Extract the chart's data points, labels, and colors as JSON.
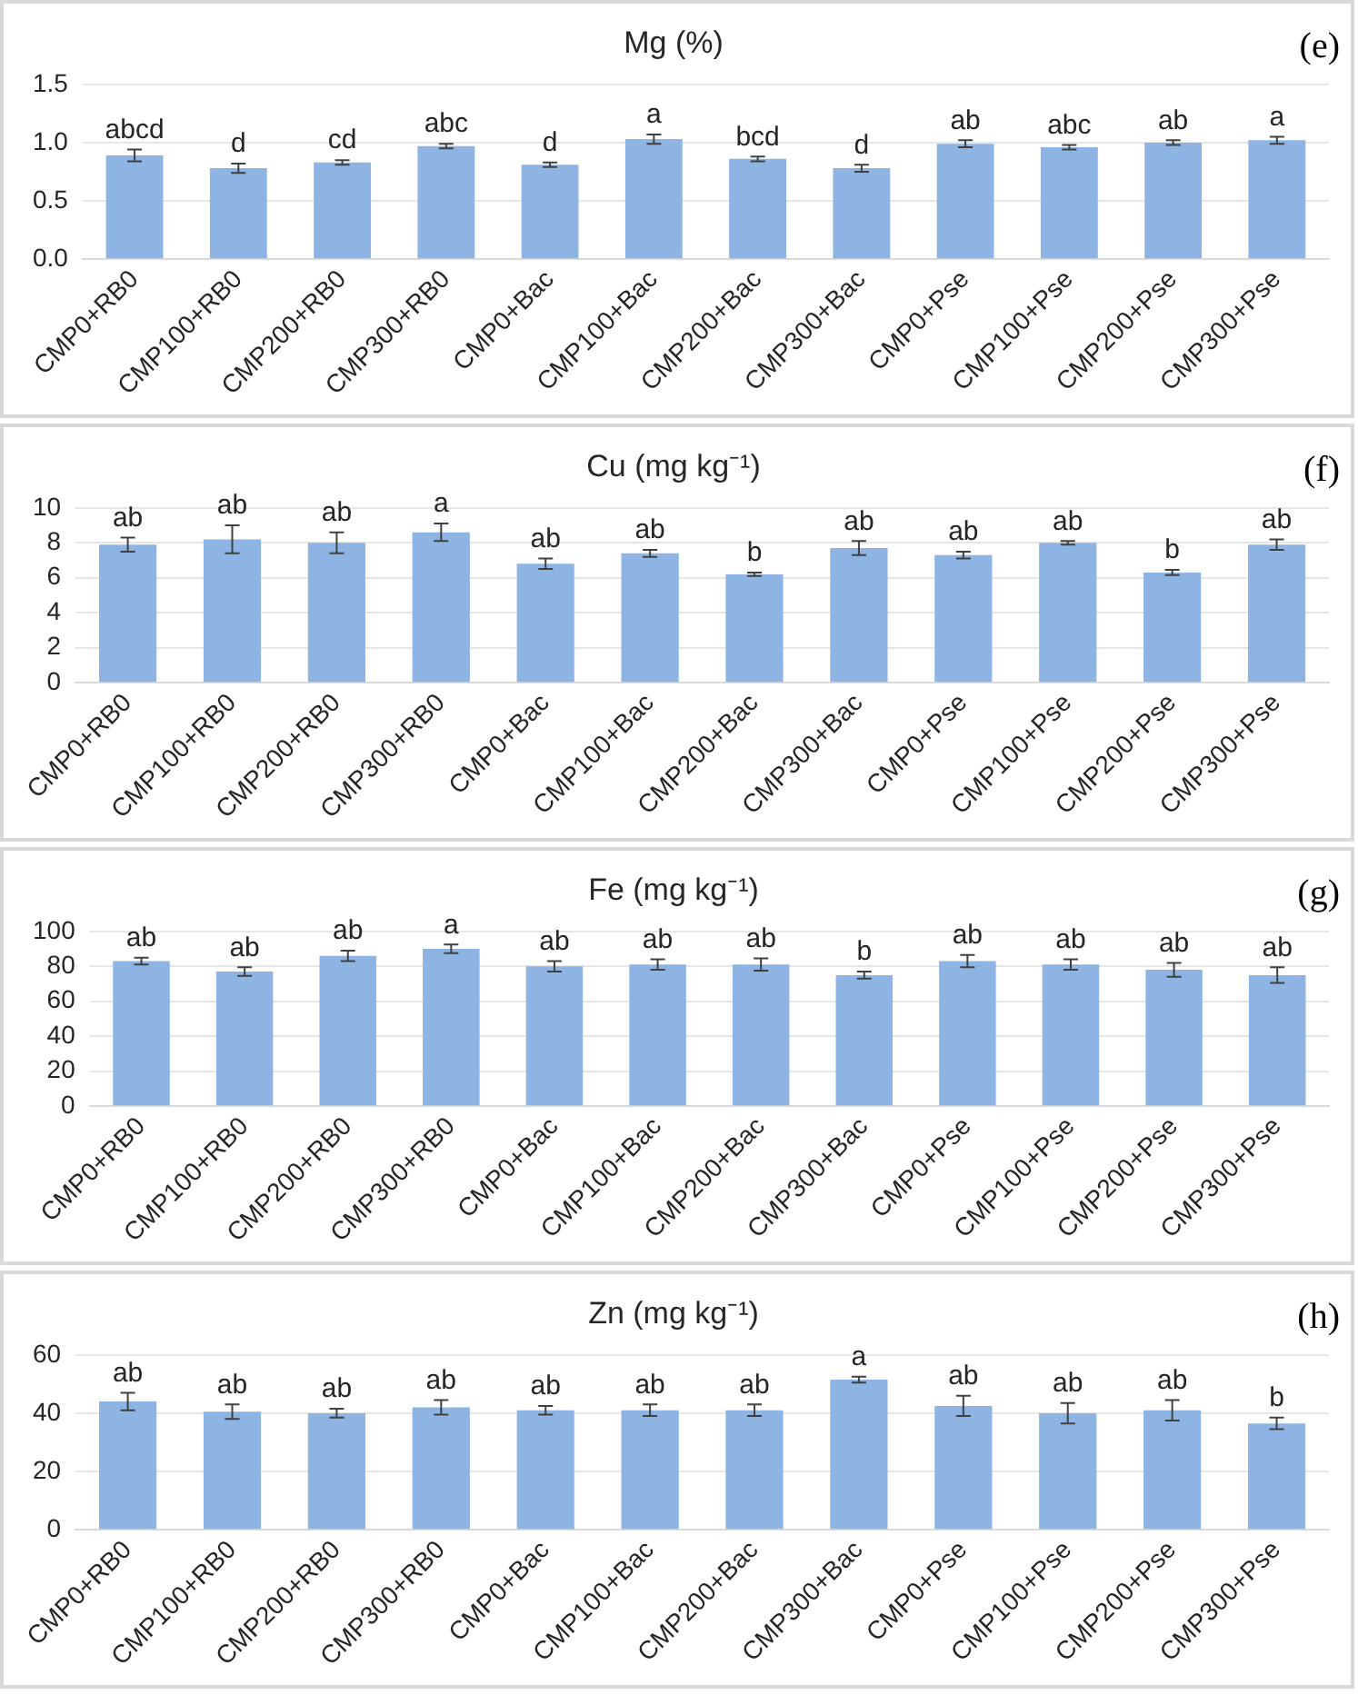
{
  "chart_data": [
    {
      "type": "bar",
      "title": "Mg (%)",
      "categories": [
        "CMP0+RB0",
        "CMP100+RB0",
        "CMP200+RB0",
        "CMP300+RB0",
        "CMP0+Bac",
        "CMP100+Bac",
        "CMP200+Bac",
        "CMP300+Bac",
        "CMP0+Pse",
        "CMP100+Pse",
        "CMP200+Pse",
        "CMP300+Pse"
      ],
      "values": [
        0.89,
        0.78,
        0.83,
        0.97,
        0.81,
        1.03,
        0.86,
        0.78,
        0.99,
        0.96,
        1.0,
        1.02
      ],
      "errors": [
        0.05,
        0.04,
        0.02,
        0.02,
        0.02,
        0.04,
        0.02,
        0.03,
        0.03,
        0.02,
        0.02,
        0.03
      ],
      "color": "#8db4e2",
      "ylim": [
        0,
        1.5
      ],
      "yticks": [
        {
          "value": 0,
          "label": "0.0"
        },
        {
          "value": 0.5,
          "label": "0.5"
        },
        {
          "value": 1,
          "label": "1.0"
        },
        {
          "value": 1.5,
          "label": "1.5"
        }
      ],
      "grid": "y",
      "legend": false,
      "annotations": [
        "(e)",
        {
          "text": "abcd",
          "x": "CMP0+RB0",
          "y": 0.94
        },
        {
          "text": "d",
          "x": "CMP100+RB0",
          "y": 0.82
        },
        {
          "text": "cd",
          "x": "CMP200+RB0",
          "y": 0.85
        },
        {
          "text": "abc",
          "x": "CMP300+RB0",
          "y": 0.99
        },
        {
          "text": "d",
          "x": "CMP0+Bac",
          "y": 0.83
        },
        {
          "text": "a",
          "x": "CMP100+Bac",
          "y": 1.07
        },
        {
          "text": "bcd",
          "x": "CMP200+Bac",
          "y": 0.88
        },
        {
          "text": "d",
          "x": "CMP300+Bac",
          "y": 0.81
        },
        {
          "text": "ab",
          "x": "CMP0+Pse",
          "y": 1.02
        },
        {
          "text": "abc",
          "x": "CMP100+Pse",
          "y": 0.98
        },
        {
          "text": "ab",
          "x": "CMP200+Pse",
          "y": 1.02
        },
        {
          "text": "a",
          "x": "CMP300+Pse",
          "y": 1.05
        }
      ]
    },
    {
      "type": "bar",
      "title": "Cu (mg kg⁻¹)",
      "categories": [
        "CMP0+RB0",
        "CMP100+RB0",
        "CMP200+RB0",
        "CMP300+RB0",
        "CMP0+Bac",
        "CMP100+Bac",
        "CMP200+Bac",
        "CMP300+Bac",
        "CMP0+Pse",
        "CMP100+Pse",
        "CMP200+Pse",
        "CMP300+Pse"
      ],
      "values": [
        7.9,
        8.2,
        8.0,
        8.6,
        6.8,
        7.4,
        6.2,
        7.7,
        7.3,
        8.0,
        6.3,
        7.9
      ],
      "errors": [
        0.4,
        0.8,
        0.6,
        0.5,
        0.3,
        0.2,
        0.1,
        0.4,
        0.2,
        0.1,
        0.15,
        0.3
      ],
      "color": "#8db4e2",
      "ylim": [
        0,
        10
      ],
      "yticks": [
        0,
        2,
        4,
        6,
        8,
        10
      ],
      "grid": "y",
      "legend": false,
      "annotations": [
        "(f)",
        {
          "text": "ab",
          "x": "CMP0+RB0",
          "y": 8.3
        },
        {
          "text": "ab",
          "x": "CMP100+RB0",
          "y": 9.0
        },
        {
          "text": "ab",
          "x": "CMP200+RB0",
          "y": 8.6
        },
        {
          "text": "a",
          "x": "CMP300+RB0",
          "y": 9.1
        },
        {
          "text": "ab",
          "x": "CMP0+Bac",
          "y": 7.1
        },
        {
          "text": "ab",
          "x": "CMP100+Bac",
          "y": 7.6
        },
        {
          "text": "b",
          "x": "CMP200+Bac",
          "y": 6.3
        },
        {
          "text": "ab",
          "x": "CMP300+Bac",
          "y": 8.1
        },
        {
          "text": "ab",
          "x": "CMP0+Pse",
          "y": 7.5
        },
        {
          "text": "ab",
          "x": "CMP100+Pse",
          "y": 8.1
        },
        {
          "text": "b",
          "x": "CMP200+Pse",
          "y": 6.45
        },
        {
          "text": "ab",
          "x": "CMP300+Pse",
          "y": 8.2
        }
      ]
    },
    {
      "type": "bar",
      "title": "Fe (mg kg⁻¹)",
      "categories": [
        "CMP0+RB0",
        "CMP100+RB0",
        "CMP200+RB0",
        "CMP300+RB0",
        "CMP0+Bac",
        "CMP100+Bac",
        "CMP200+Bac",
        "CMP300+Bac",
        "CMP0+Pse",
        "CMP100+Pse",
        "CMP200+Pse",
        "CMP300+Pse"
      ],
      "values": [
        83,
        77,
        86,
        90,
        80,
        81,
        81,
        75,
        83,
        81,
        78,
        75
      ],
      "errors": [
        2,
        2.5,
        3,
        2.5,
        3,
        3,
        3.5,
        2,
        3.5,
        3,
        4,
        4.5
      ],
      "color": "#8db4e2",
      "ylim": [
        0,
        100
      ],
      "yticks": [
        0,
        20,
        40,
        60,
        80,
        100
      ],
      "grid": "y",
      "legend": false,
      "annotations": [
        "(g)",
        {
          "text": "ab",
          "x": "CMP0+RB0",
          "y": 85
        },
        {
          "text": "ab",
          "x": "CMP100+RB0",
          "y": 79.5
        },
        {
          "text": "ab",
          "x": "CMP200+RB0",
          "y": 89
        },
        {
          "text": "a",
          "x": "CMP300+RB0",
          "y": 92.5
        },
        {
          "text": "ab",
          "x": "CMP0+Bac",
          "y": 83
        },
        {
          "text": "ab",
          "x": "CMP100+Bac",
          "y": 84
        },
        {
          "text": "ab",
          "x": "CMP200+Bac",
          "y": 84.5
        },
        {
          "text": "b",
          "x": "CMP300+Bac",
          "y": 77
        },
        {
          "text": "ab",
          "x": "CMP0+Pse",
          "y": 86.5
        },
        {
          "text": "ab",
          "x": "CMP100+Pse",
          "y": 84
        },
        {
          "text": "ab",
          "x": "CMP200+Pse",
          "y": 82
        },
        {
          "text": "ab",
          "x": "CMP300+Pse",
          "y": 79.5
        }
      ]
    },
    {
      "type": "bar",
      "title": "Zn (mg kg⁻¹)",
      "categories": [
        "CMP0+RB0",
        "CMP100+RB0",
        "CMP200+RB0",
        "CMP300+RB0",
        "CMP0+Bac",
        "CMP100+Bac",
        "CMP200+Bac",
        "CMP300+Bac",
        "CMP0+Pse",
        "CMP100+Pse",
        "CMP200+Pse",
        "CMP300+Pse"
      ],
      "values": [
        44,
        40.5,
        40,
        42,
        41,
        41,
        41,
        51.5,
        42.5,
        40,
        41,
        36.5
      ],
      "errors": [
        3,
        2.5,
        1.5,
        2.5,
        1.5,
        2,
        2,
        1,
        3.5,
        3.5,
        3.5,
        2
      ],
      "color": "#8db4e2",
      "ylim": [
        0,
        60
      ],
      "yticks": [
        0,
        20,
        40,
        60
      ],
      "grid": "y",
      "legend": false,
      "annotations": [
        "(h)",
        {
          "text": "ab",
          "x": "CMP0+RB0",
          "y": 47
        },
        {
          "text": "ab",
          "x": "CMP100+RB0",
          "y": 43
        },
        {
          "text": "ab",
          "x": "CMP200+RB0",
          "y": 41.5
        },
        {
          "text": "ab",
          "x": "CMP300+RB0",
          "y": 44.5
        },
        {
          "text": "ab",
          "x": "CMP0+Bac",
          "y": 42.5
        },
        {
          "text": "ab",
          "x": "CMP100+Bac",
          "y": 43
        },
        {
          "text": "ab",
          "x": "CMP200+Bac",
          "y": 43
        },
        {
          "text": "a",
          "x": "CMP300+Bac",
          "y": 52.5
        },
        {
          "text": "ab",
          "x": "CMP0+Pse",
          "y": 46
        },
        {
          "text": "ab",
          "x": "CMP100+Pse",
          "y": 43.5
        },
        {
          "text": "ab",
          "x": "CMP200+Pse",
          "y": 44.5
        },
        {
          "text": "b",
          "x": "CMP300+Pse",
          "y": 38.5
        }
      ]
    }
  ]
}
